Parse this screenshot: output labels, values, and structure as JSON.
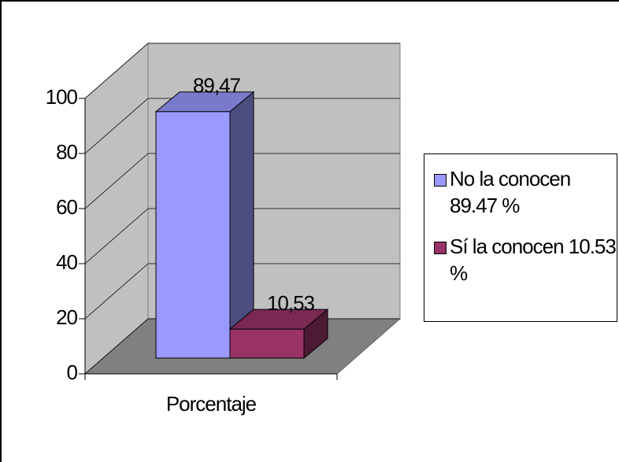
{
  "chart_data": {
    "type": "bar",
    "categories": [
      "Porcentaje"
    ],
    "series": [
      {
        "name": "No la conocen 89.47 %",
        "color": "#9999ff",
        "values": [
          89.47
        ],
        "value_labels": [
          "89,47"
        ]
      },
      {
        "name": "Sí la conocen 10.53 %",
        "color": "#993366",
        "values": [
          10.53
        ],
        "value_labels": [
          "10,53"
        ]
      }
    ],
    "ylim": [
      0,
      100
    ],
    "yticks": [
      0,
      20,
      40,
      60,
      80,
      100
    ],
    "grid": true,
    "legend": "right"
  }
}
